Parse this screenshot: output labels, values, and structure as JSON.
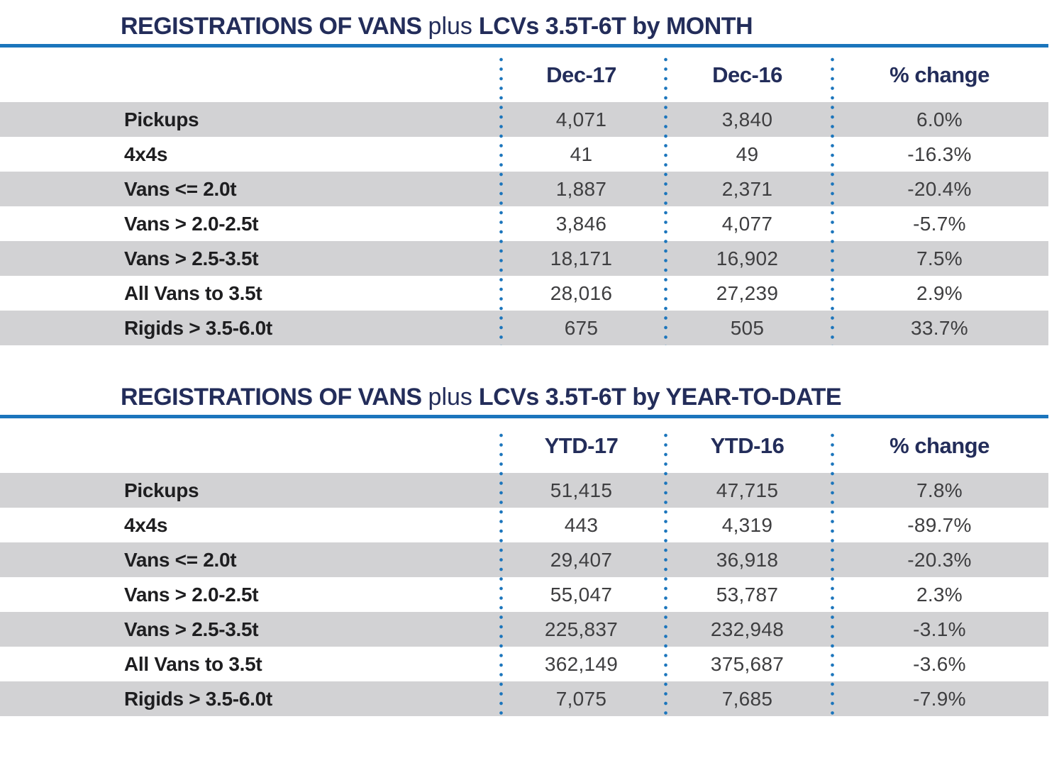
{
  "colors": {
    "navy": "#232d5a",
    "rule_blue": "#1b75bc",
    "dot_blue": "#1b75bc",
    "row_gray": "#d2d2d4",
    "label_text": "#1e1e20",
    "value_text": "#3e3e40"
  },
  "tables": [
    {
      "title_bold_1": "REGISTRATIONS OF VANS",
      "title_light": "plus",
      "title_bold_2": "LCVs 3.5T-6T by MONTH",
      "columns": [
        "Dec-17",
        "Dec-16",
        "% change"
      ],
      "rows": [
        {
          "label": "Pickups",
          "values": [
            "4,071",
            "3,840",
            "6.0%"
          ]
        },
        {
          "label": "4x4s",
          "values": [
            "41",
            "49",
            "-16.3%"
          ]
        },
        {
          "label": "Vans <= 2.0t",
          "values": [
            "1,887",
            "2,371",
            "-20.4%"
          ]
        },
        {
          "label": "Vans > 2.0-2.5t",
          "values": [
            "3,846",
            "4,077",
            "-5.7%"
          ]
        },
        {
          "label": "Vans > 2.5-3.5t",
          "values": [
            "18,171",
            "16,902",
            "7.5%"
          ]
        },
        {
          "label": "All Vans to 3.5t",
          "values": [
            "28,016",
            "27,239",
            "2.9%"
          ]
        },
        {
          "label": "Rigids > 3.5-6.0t",
          "values": [
            "675",
            "505",
            "33.7%"
          ]
        }
      ]
    },
    {
      "title_bold_1": "REGISTRATIONS OF VANS",
      "title_light": "plus",
      "title_bold_2": "LCVs 3.5T-6T by YEAR-TO-DATE",
      "columns": [
        "YTD-17",
        "YTD-16",
        "% change"
      ],
      "rows": [
        {
          "label": "Pickups",
          "values": [
            "51,415",
            "47,715",
            "7.8%"
          ]
        },
        {
          "label": "4x4s",
          "values": [
            "443",
            "4,319",
            "-89.7%"
          ]
        },
        {
          "label": "Vans <= 2.0t",
          "values": [
            "29,407",
            "36,918",
            "-20.3%"
          ]
        },
        {
          "label": "Vans > 2.0-2.5t",
          "values": [
            "55,047",
            "53,787",
            "2.3%"
          ]
        },
        {
          "label": "Vans > 2.5-3.5t",
          "values": [
            "225,837",
            "232,948",
            "-3.1%"
          ]
        },
        {
          "label": "All Vans to 3.5t",
          "values": [
            "362,149",
            "375,687",
            "-3.6%"
          ]
        },
        {
          "label": "Rigids > 3.5-6.0t",
          "values": [
            "7,075",
            "7,685",
            "-7.9%"
          ]
        }
      ]
    }
  ]
}
